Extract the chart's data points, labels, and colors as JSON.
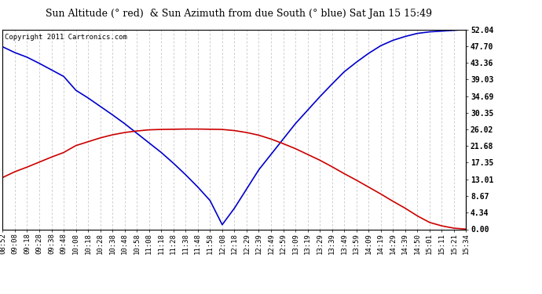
{
  "title": "Sun Altitude (° red)  & Sun Azimuth from due South (° blue) Sat Jan 15 15:49",
  "copyright": "Copyright 2011 Cartronics.com",
  "background_color": "#ffffff",
  "plot_bg_color": "#ffffff",
  "grid_color": "#bbbbbb",
  "blue_color": "#0000cc",
  "red_color": "#cc0000",
  "ymin": 0.0,
  "ymax": 52.04,
  "yticks": [
    0.0,
    4.34,
    8.67,
    13.01,
    17.35,
    21.68,
    26.02,
    30.35,
    34.69,
    39.03,
    43.36,
    47.7,
    52.04
  ],
  "x_labels": [
    "08:52",
    "09:08",
    "09:18",
    "09:28",
    "09:38",
    "09:48",
    "10:08",
    "10:18",
    "10:28",
    "10:38",
    "10:48",
    "10:58",
    "11:08",
    "11:18",
    "11:28",
    "11:38",
    "11:48",
    "11:58",
    "12:08",
    "12:18",
    "12:29",
    "12:39",
    "12:49",
    "12:59",
    "13:09",
    "13:19",
    "13:29",
    "13:39",
    "13:49",
    "13:59",
    "14:09",
    "14:19",
    "14:29",
    "14:39",
    "14:50",
    "15:01",
    "15:11",
    "15:21",
    "15:34"
  ],
  "blue_values": [
    47.5,
    46.0,
    44.8,
    43.2,
    41.5,
    39.8,
    36.2,
    34.2,
    32.0,
    29.8,
    27.5,
    25.0,
    22.5,
    20.0,
    17.2,
    14.2,
    11.0,
    7.5,
    1.2,
    5.5,
    10.5,
    15.5,
    19.5,
    23.5,
    27.5,
    31.0,
    34.5,
    37.8,
    41.0,
    43.5,
    45.8,
    47.8,
    49.2,
    50.2,
    51.0,
    51.4,
    51.6,
    51.8,
    52.04
  ],
  "red_values": [
    13.5,
    15.0,
    16.2,
    17.5,
    18.8,
    20.0,
    21.8,
    22.8,
    23.8,
    24.6,
    25.2,
    25.6,
    25.9,
    26.0,
    26.05,
    26.1,
    26.1,
    26.05,
    26.0,
    25.7,
    25.2,
    24.5,
    23.5,
    22.3,
    21.0,
    19.5,
    18.0,
    16.3,
    14.5,
    12.8,
    11.0,
    9.2,
    7.3,
    5.5,
    3.5,
    1.8,
    0.9,
    0.3,
    0.05
  ],
  "title_fontsize": 9.0,
  "copyright_fontsize": 6.5,
  "tick_fontsize": 7.0,
  "xlabel_fontsize": 6.5
}
